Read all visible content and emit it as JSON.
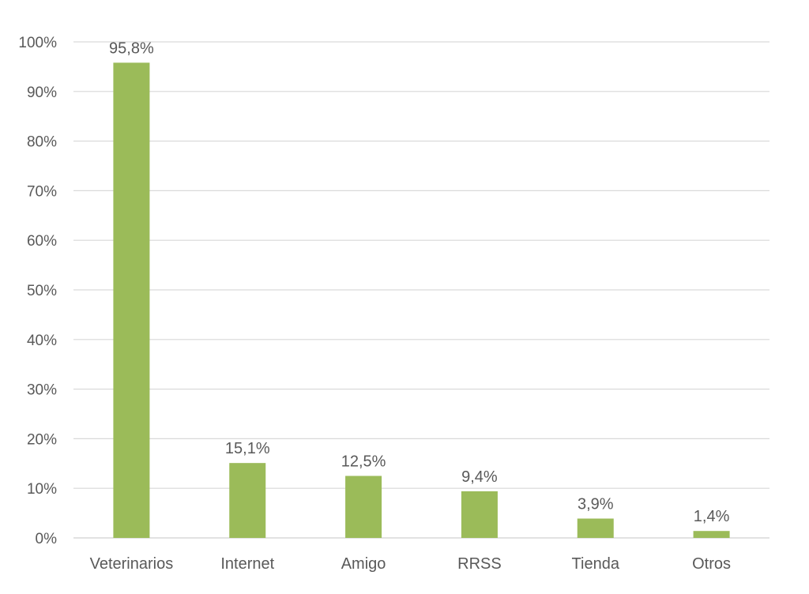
{
  "chart_data": {
    "type": "bar",
    "categories": [
      "Veterinarios",
      "Internet",
      "Amigo",
      "RRSS",
      "Tienda",
      "Otros"
    ],
    "values": [
      95.8,
      15.1,
      12.5,
      9.4,
      3.9,
      1.4
    ],
    "data_labels": [
      "95,8%",
      "15,1%",
      "12,5%",
      "9,4%",
      "3,9%",
      "1,4%"
    ],
    "y_ticks": [
      0,
      10,
      20,
      30,
      40,
      50,
      60,
      70,
      80,
      90,
      100
    ],
    "y_tick_labels": [
      "0%",
      "10%",
      "20%",
      "30%",
      "40%",
      "50%",
      "60%",
      "70%",
      "80%",
      "90%",
      "100%"
    ],
    "title": "",
    "xlabel": "",
    "ylabel": "",
    "ylim": [
      0,
      100
    ],
    "grid": true,
    "legend": "none",
    "bar_color": "#9bbb59",
    "grid_color": "#d9d9d9",
    "text_color": "#595959"
  }
}
